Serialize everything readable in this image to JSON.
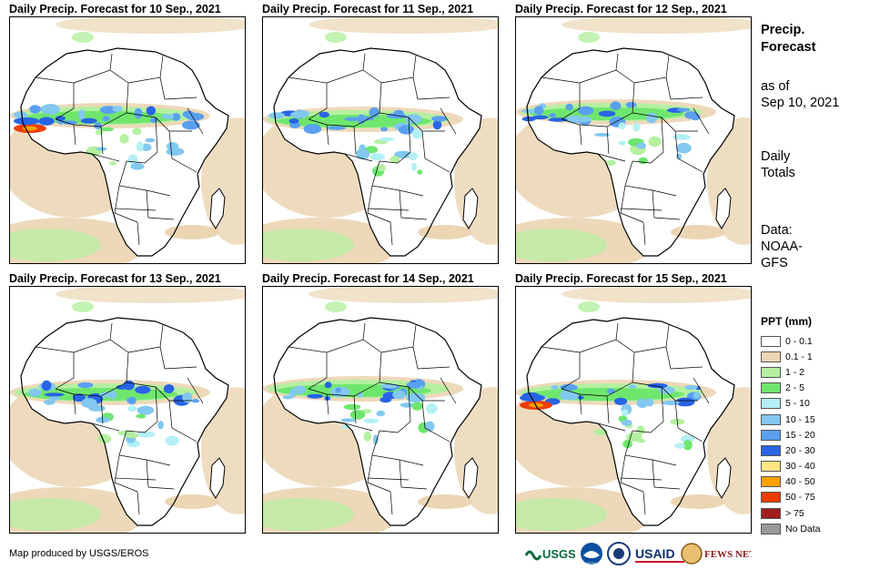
{
  "panels": [
    {
      "title": "Daily Precip. Forecast for 10 Sep., 2021",
      "band_offset": 0,
      "heavy": true
    },
    {
      "title": "Daily Precip. Forecast for 11 Sep., 2021",
      "band_offset": 1,
      "heavy": false
    },
    {
      "title": "Daily Precip. Forecast for 12 Sep., 2021",
      "band_offset": -1,
      "heavy": false
    },
    {
      "title": "Daily Precip. Forecast for 13 Sep., 2021",
      "band_offset": 2,
      "heavy": false
    },
    {
      "title": "Daily Precip. Forecast for 14 Sep., 2021",
      "band_offset": 1,
      "heavy": false
    },
    {
      "title": "Daily Precip. Forecast for 15 Sep., 2021",
      "band_offset": 2,
      "heavy": true
    }
  ],
  "sidebar": {
    "heading": [
      "Precip.",
      "Forecast"
    ],
    "as_of": [
      "as of",
      "Sep 10, 2021"
    ],
    "totals": [
      "Daily",
      "Totals"
    ],
    "source": [
      "Data:",
      "NOAA-",
      "GFS"
    ]
  },
  "legend": {
    "title": "PPT (mm)",
    "items": [
      {
        "label": "0 - 0.1",
        "color": "#ffffff"
      },
      {
        "label": "0.1 - 1",
        "color": "#ebd5b3"
      },
      {
        "label": "1 - 2",
        "color": "#b4f0a0"
      },
      {
        "label": "2 - 5",
        "color": "#6ee66e"
      },
      {
        "label": "5 - 10",
        "color": "#b4f0f5"
      },
      {
        "label": "10 - 15",
        "color": "#82c8f0"
      },
      {
        "label": "15 - 20",
        "color": "#5aa0f0"
      },
      {
        "label": "20 - 30",
        "color": "#2864e6"
      },
      {
        "label": "30 - 40",
        "color": "#ffe682"
      },
      {
        "label": "40 - 50",
        "color": "#ffa000"
      },
      {
        "label": "50 - 75",
        "color": "#f03c00"
      },
      {
        "label": "> 75",
        "color": "#a01e1e"
      },
      {
        "label": "No Data",
        "color": "#999999"
      }
    ]
  },
  "footer": {
    "credit": "Map produced by USGS/EROS",
    "logos": [
      "USGS",
      "NOAA",
      "USAID",
      "FEWS NET"
    ]
  }
}
